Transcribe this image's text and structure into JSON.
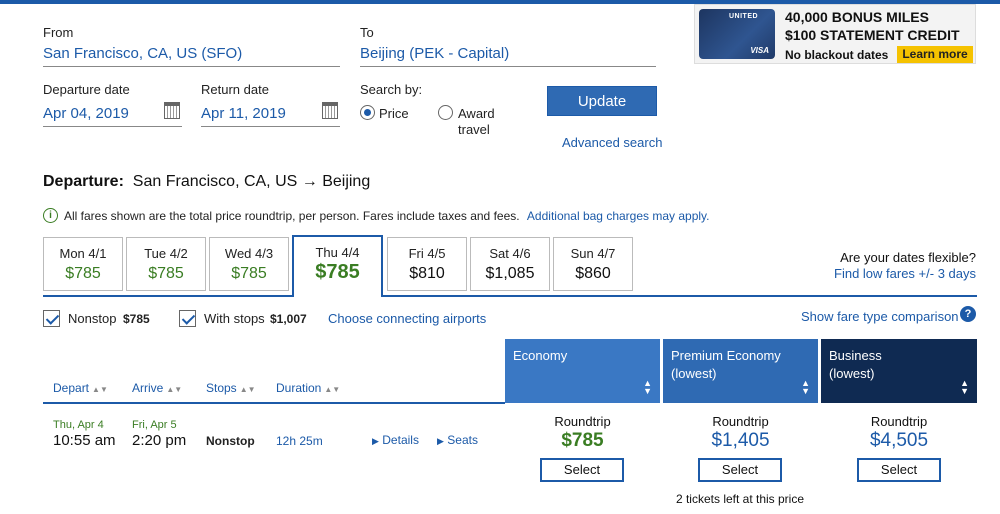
{
  "search": {
    "from_label": "From",
    "from_value": "San Francisco, CA, US (SFO)",
    "to_label": "To",
    "to_value": "Beijing (PEK - Capital)",
    "departure_label": "Departure date",
    "departure_value": "Apr 04, 2019",
    "return_label": "Return date",
    "return_value": "Apr 11, 2019",
    "search_by_label": "Search by:",
    "option_price": "Price",
    "option_award_1": "Award",
    "option_award_2": "travel",
    "update_label": "Update",
    "advanced_label": "Advanced search"
  },
  "ad": {
    "line1": "40,000 BONUS MILES",
    "line2": "$100 STATEMENT CREDIT",
    "line3": "No blackout dates",
    "cta": "Learn more",
    "card_brand": "UNITED",
    "card_network": "VISA"
  },
  "departure": {
    "label": "Departure:",
    "route": "San Francisco, CA, US → Beijing"
  },
  "notice": {
    "text": "All fares shown are the total price roundtrip, per person. Fares include taxes and fees.",
    "link": "Additional bag charges may apply."
  },
  "days": [
    {
      "day": "Mon 4/1",
      "price": "$785",
      "color": "#3a7d23"
    },
    {
      "day": "Tue 4/2",
      "price": "$785",
      "color": "#3a7d23"
    },
    {
      "day": "Wed 4/3",
      "price": "$785",
      "color": "#3a7d23"
    },
    {
      "day": "Thu 4/4",
      "price": "$785",
      "color": "#3a7d23"
    },
    {
      "day": "Fri 4/5",
      "price": "$810",
      "color": "#111111"
    },
    {
      "day": "Sat 4/6",
      "price": "$1,085",
      "color": "#111111"
    },
    {
      "day": "Sun 4/7",
      "price": "$860",
      "color": "#111111"
    }
  ],
  "flexible": {
    "question": "Are your dates flexible?",
    "link": "Find low fares +/- 3 days"
  },
  "filters": {
    "nonstop_label": "Nonstop",
    "nonstop_price": "$785",
    "withstops_label": "With stops",
    "withstops_price": "$1,007",
    "connecting_link": "Choose connecting airports",
    "compare_link": "Show fare type comparison"
  },
  "columns": {
    "depart": "Depart",
    "arrive": "Arrive",
    "stops": "Stops",
    "duration": "Duration"
  },
  "cabins": [
    {
      "line1": "Economy",
      "line2": "",
      "color": "#3a78c4"
    },
    {
      "line1": "Premium Economy",
      "line2": "(lowest)",
      "color": "#2f6ab3"
    },
    {
      "line1": "Business",
      "line2": "(lowest)",
      "color": "#0f2a52"
    }
  ],
  "flight": {
    "depart_date": "Thu, Apr 4",
    "depart_time": "10:55 am",
    "arrive_date": "Fri, Apr 5",
    "arrive_time": "2:20 pm",
    "stops": "Nonstop",
    "duration": "12h 25m",
    "details_link": "Details",
    "seats_link": "Seats",
    "fares": [
      {
        "label": "Roundtrip",
        "price": "$785",
        "color": "#3a7d23",
        "select": "Select",
        "note": ""
      },
      {
        "label": "Roundtrip",
        "price": "$1,405",
        "color": "#1c5aa8",
        "select": "Select",
        "note": "2 tickets left at this price"
      },
      {
        "label": "Roundtrip",
        "price": "$4,505",
        "color": "#1c5aa8",
        "select": "Select",
        "note": ""
      }
    ]
  }
}
